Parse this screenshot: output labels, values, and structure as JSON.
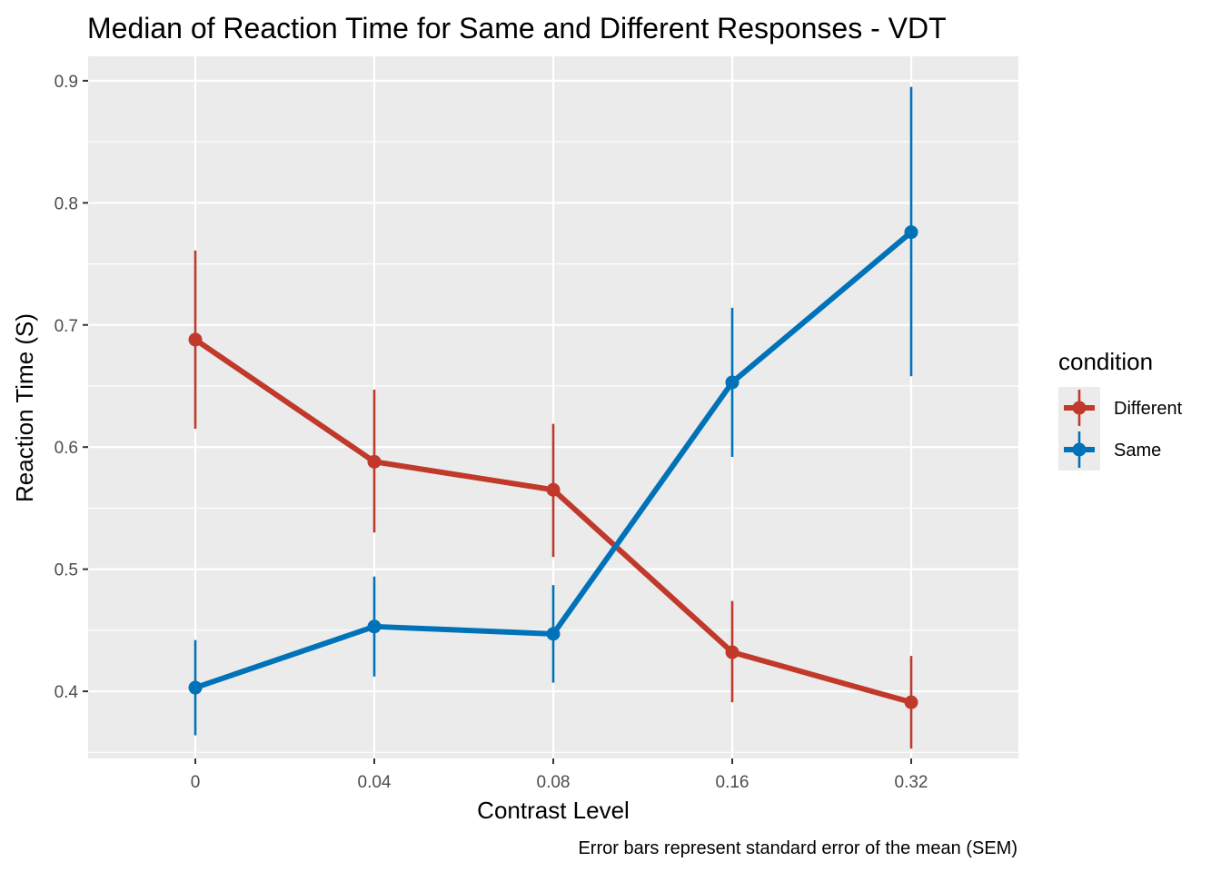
{
  "chart_data": {
    "type": "line",
    "title": "Median of Reaction Time for Same and Different Responses - VDT",
    "xlabel": "Contrast Level",
    "ylabel": "Reaction Time (S)",
    "caption": "Error bars represent standard error of the mean (SEM)",
    "categories": [
      "0",
      "0.04",
      "0.08",
      "0.16",
      "0.32"
    ],
    "y_ticks": [
      "0.4",
      "0.5",
      "0.6",
      "0.7",
      "0.8",
      "0.9"
    ],
    "ylim": [
      0.345,
      0.92
    ],
    "grid": true,
    "legend": {
      "title": "condition",
      "position": "right"
    },
    "series": [
      {
        "name": "Different",
        "color": "#c0392b",
        "values": [
          0.688,
          0.588,
          0.565,
          0.432,
          0.391
        ],
        "lower": [
          0.615,
          0.53,
          0.51,
          0.391,
          0.353
        ],
        "upper": [
          0.761,
          0.647,
          0.619,
          0.474,
          0.429
        ]
      },
      {
        "name": "Same",
        "color": "#0072b8",
        "values": [
          0.403,
          0.453,
          0.447,
          0.653,
          0.776
        ],
        "lower": [
          0.364,
          0.412,
          0.407,
          0.592,
          0.658
        ],
        "upper": [
          0.442,
          0.494,
          0.487,
          0.714,
          0.895
        ]
      }
    ]
  }
}
